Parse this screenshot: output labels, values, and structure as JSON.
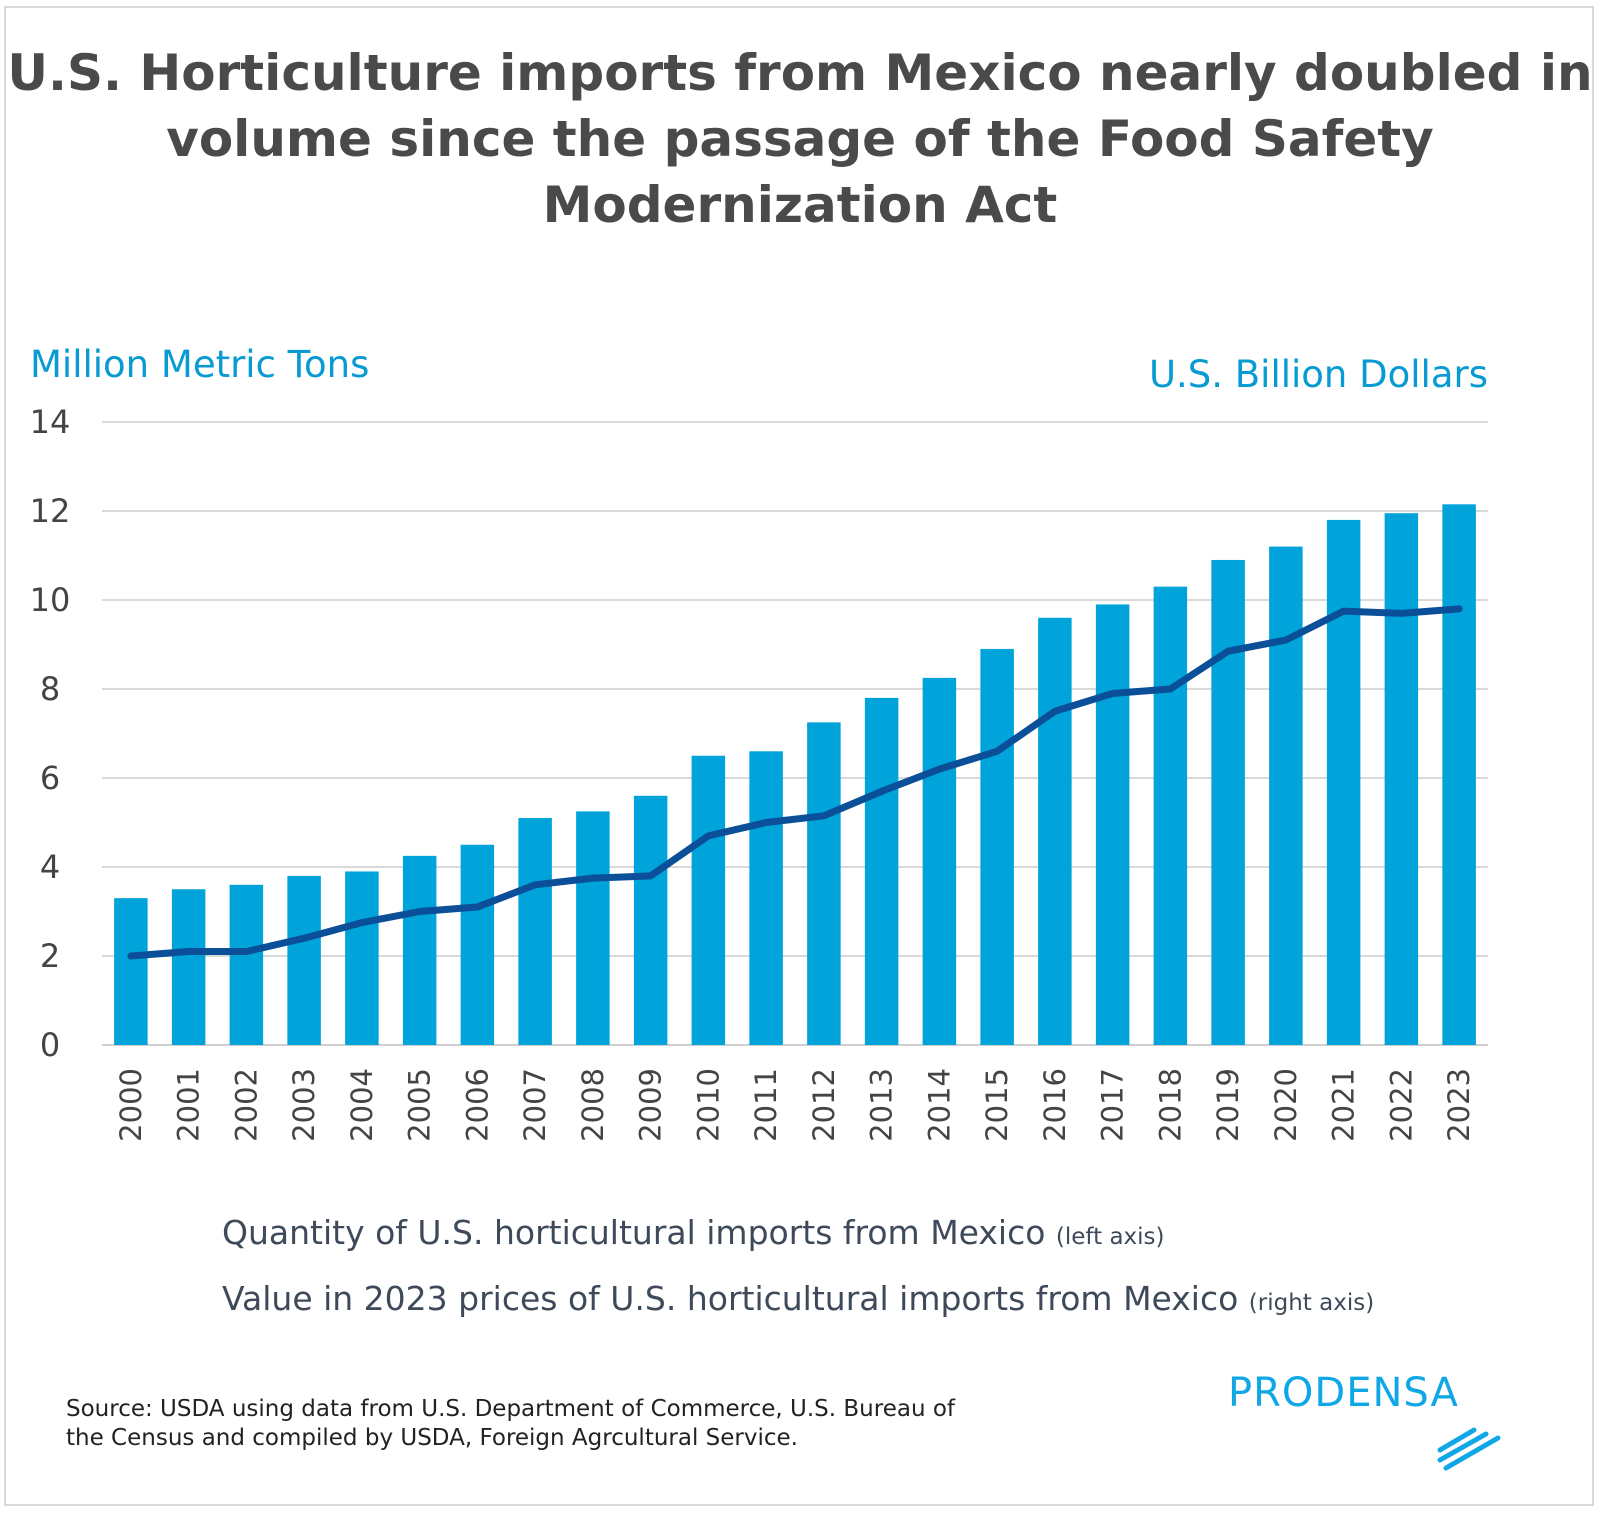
{
  "title": "U.S. Horticulture imports from Mexico nearly doubled in volume since the passage of the Food Safety Modernization Act",
  "left_axis_title": "Million Metric Tons",
  "right_axis_title": "U.S. Billion Dollars",
  "legend": [
    {
      "label": "Quantity of U.S. horticultural imports from Mexico",
      "note": "(left axis)"
    },
    {
      "label": "Value in 2023 prices of U.S. horticultural imports from Mexico",
      "note": "(right axis)"
    }
  ],
  "source": "Source: USDA using data from U.S. Department of Commerce, U.S. Bureau of the Census and compiled by USDA, Foreign Agrcultural Service.",
  "logo": "PRODENSA",
  "colors": {
    "bars": "#00a3da",
    "line": "#0b4f99",
    "axis_title": "#079ad3",
    "grid": "#d9d9d9"
  },
  "chart_data": {
    "type": "bar+line",
    "title": "U.S. Horticulture imports from Mexico nearly doubled in volume since the passage of the Food Safety Modernization Act",
    "categories": [
      "2000",
      "2001",
      "2002",
      "2003",
      "2004",
      "2005",
      "2006",
      "2007",
      "2008",
      "2009",
      "2010",
      "2011",
      "2012",
      "2013",
      "2014",
      "2015",
      "2016",
      "2017",
      "2018",
      "2019",
      "2020",
      "2021",
      "2022",
      "2023"
    ],
    "yticks": [
      0,
      2,
      4,
      6,
      8,
      10,
      12,
      14
    ],
    "ylim": [
      0,
      14
    ],
    "grid": true,
    "legend_placement": "bottom",
    "series": [
      {
        "name": "Quantity of U.S. horticultural imports from Mexico",
        "type": "bar",
        "axis": "left",
        "values": [
          3.3,
          3.5,
          3.6,
          3.8,
          3.9,
          4.25,
          4.5,
          5.1,
          5.25,
          5.6,
          6.5,
          6.6,
          7.25,
          7.8,
          8.25,
          8.9,
          9.6,
          9.9,
          10.3,
          10.9,
          11.2,
          11.8,
          11.95,
          12.15
        ]
      },
      {
        "name": "Value in 2023 prices of U.S. horticultural imports from Mexico",
        "type": "line",
        "axis": "right",
        "values": [
          2.0,
          2.1,
          2.1,
          2.4,
          2.75,
          3.0,
          3.1,
          3.6,
          3.75,
          3.8,
          4.7,
          5.0,
          5.15,
          5.7,
          6.2,
          6.6,
          7.5,
          7.9,
          8.0,
          8.85,
          9.1,
          9.75,
          9.7,
          9.8
        ]
      }
    ]
  }
}
